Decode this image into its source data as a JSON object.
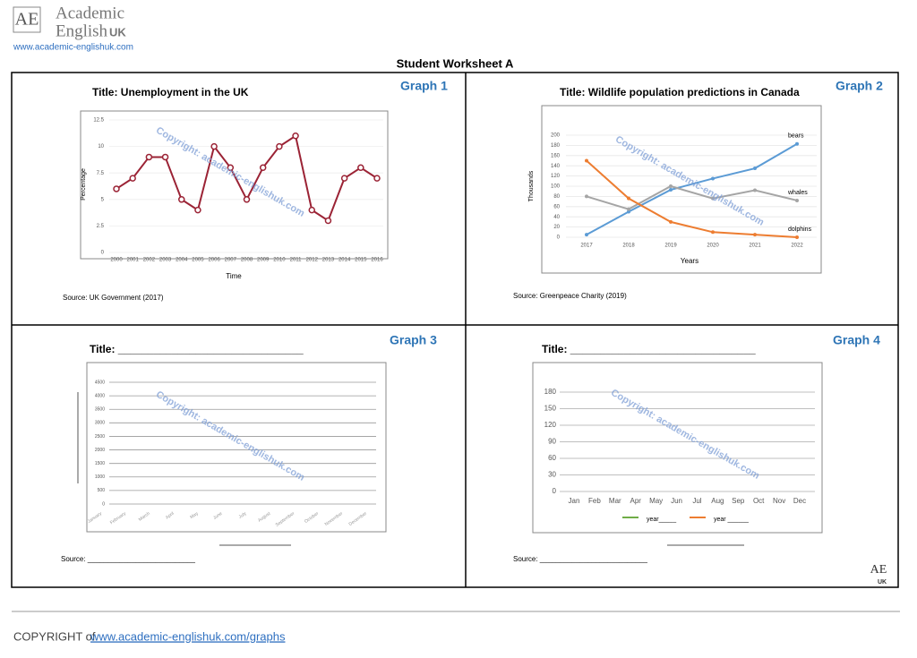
{
  "header": {
    "logo_mark": "AE",
    "brand_line1": "Academic",
    "brand_line2": "English",
    "brand_suffix": "UK",
    "url": "www.academic-englishuk.com"
  },
  "worksheet_title": "Student Worksheet A",
  "watermark": "Copyright: academic-englishuk.com",
  "chart_data": [
    {
      "type": "line",
      "panel_label": "Graph 1",
      "title": "Title: Unemployment in the UK",
      "source": "Source: UK Government (2017)",
      "x_label": "Time",
      "y_label": "Percentage",
      "categories": [
        "2000",
        "2001",
        "2002",
        "2003",
        "2004",
        "2005",
        "2006",
        "2007",
        "2008",
        "2009",
        "2010",
        "2011",
        "2012",
        "2013",
        "2014",
        "2015",
        "2016"
      ],
      "values": [
        6,
        7,
        9,
        9,
        5,
        4,
        10,
        8,
        5,
        8,
        10,
        11,
        4,
        3,
        7,
        8,
        7
      ],
      "color": "#9b2335",
      "ylim": [
        0,
        12.5
      ],
      "yticks": [
        0,
        2.5,
        5,
        7.5,
        10,
        12.5
      ],
      "grid": true
    },
    {
      "type": "line",
      "panel_label": "Graph 2",
      "title": "Title: Wildlife population predictions in Canada",
      "source": "Source: Greenpeace Charity (2019)",
      "x_label": "Years",
      "y_label": "Thousands",
      "categories": [
        "2017",
        "2018",
        "2019",
        "2020",
        "2021",
        "2022"
      ],
      "series": [
        {
          "name": "bears",
          "color": "#5b9bd5",
          "values": [
            5,
            50,
            93,
            115,
            135,
            183
          ]
        },
        {
          "name": "whales",
          "color": "#a5a5a5",
          "values": [
            80,
            55,
            100,
            76,
            92,
            72
          ]
        },
        {
          "name": "dolphins",
          "color": "#ed7d31",
          "values": [
            150,
            76,
            30,
            10,
            5,
            0
          ]
        }
      ],
      "ylim": [
        0,
        200
      ],
      "yticks": [
        0,
        20,
        40,
        60,
        80,
        100,
        120,
        140,
        160,
        180,
        200
      ],
      "grid": true
    },
    {
      "type": "line",
      "panel_label": "Graph 3",
      "title": "Title: _______________________________",
      "source": "Source: ___________________________",
      "categories": [
        "January",
        "February",
        "March",
        "April",
        "May",
        "June",
        "July",
        "August",
        "September",
        "October",
        "November",
        "December"
      ],
      "ylim": [
        0,
        4500
      ],
      "yticks": [
        0,
        500,
        1000,
        1500,
        2000,
        2500,
        3000,
        3500,
        4000,
        4500
      ],
      "grid": true
    },
    {
      "type": "line",
      "panel_label": "Graph 4",
      "title": "Title: _______________________________",
      "source": "Source: ___________________________",
      "categories": [
        "Jan",
        "Feb",
        "Mar",
        "Apr",
        "May",
        "Jun",
        "Jul",
        "Aug",
        "Sep",
        "Oct",
        "Nov",
        "Dec"
      ],
      "series": [
        {
          "name": "year_____",
          "color": "#70ad47",
          "values": [
            null,
            null,
            null,
            null,
            null,
            null,
            null,
            null,
            null,
            null,
            null,
            null
          ]
        },
        {
          "name": "year ______",
          "color": "#ed7d31",
          "values": [
            null,
            null,
            null,
            null,
            null,
            null,
            null,
            null,
            null,
            null,
            null,
            null
          ]
        }
      ],
      "ylim": [
        0,
        180
      ],
      "yticks": [
        0,
        30,
        60,
        90,
        120,
        150,
        180
      ],
      "grid": true
    }
  ],
  "footer": {
    "prefix": "COPYRIGHT of",
    "link": "www.academic-englishuk.com/graphs"
  },
  "corner_logo": {
    "mark": "AE",
    "suffix": "UK"
  }
}
